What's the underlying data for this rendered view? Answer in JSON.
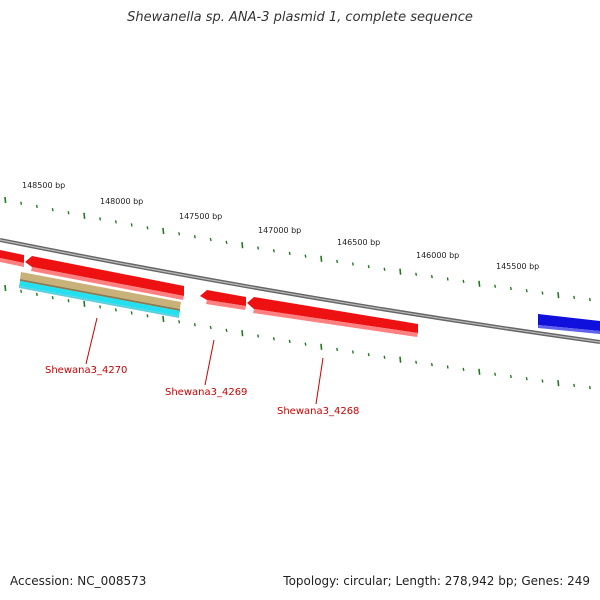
{
  "title": "Shewanella sp. ANA-3 plasmid 1, complete sequence",
  "footer": {
    "accession": "Accession: NC_008573",
    "summary": "Topology: circular; Length: 278,942 bp; Genes: 249"
  },
  "colors": {
    "backbone": "#888888",
    "tick": "#1f7a1f",
    "gene_red": "#ee1111",
    "gene_tan": "#c8b27a",
    "gene_cyan": "#22e0f0",
    "gene_blue": "#1010dd",
    "label_red": "#cc0000"
  },
  "bp_labels": [
    "148500 bp",
    "148000 bp",
    "147500 bp",
    "147000 bp",
    "146500 bp",
    "146000 bp",
    "145500 bp"
  ],
  "genes": [
    {
      "name": "Shewana3_4270"
    },
    {
      "name": "Shewana3_4269"
    },
    {
      "name": "Shewana3_4268"
    }
  ]
}
